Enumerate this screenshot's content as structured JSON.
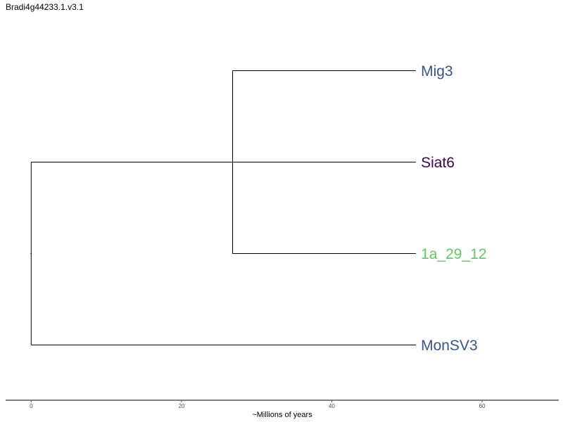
{
  "title": "Bradi4g44233.1.v3.1",
  "chart_data": {
    "type": "dendrogram",
    "xlabel": "~Millions of years",
    "xlim": [
      -3.4,
      70.2
    ],
    "ticks": [
      0,
      20,
      40,
      60
    ],
    "tick_labels": [
      "0",
      "20",
      "40",
      "60"
    ],
    "root_age": 0,
    "nodes": [
      {
        "id": "root",
        "x": 0,
        "children": [
          "n1",
          "MonSV3"
        ]
      },
      {
        "id": "n1",
        "x": 26.8,
        "children": [
          "Mig3",
          "Siat6",
          "1a_29_12"
        ]
      }
    ],
    "leaves": [
      {
        "name": "Mig3",
        "x": 51.2,
        "row": 1,
        "color": "#3b528b"
      },
      {
        "name": "Siat6",
        "x": 51.2,
        "row": 2,
        "color": "#440154"
      },
      {
        "name": "1a_29_12",
        "x": 51.2,
        "row": 3,
        "color": "#5ec962"
      },
      {
        "name": "MonSV3",
        "x": 51.2,
        "row": 4,
        "color": "#3b528b"
      }
    ],
    "grid": false
  }
}
